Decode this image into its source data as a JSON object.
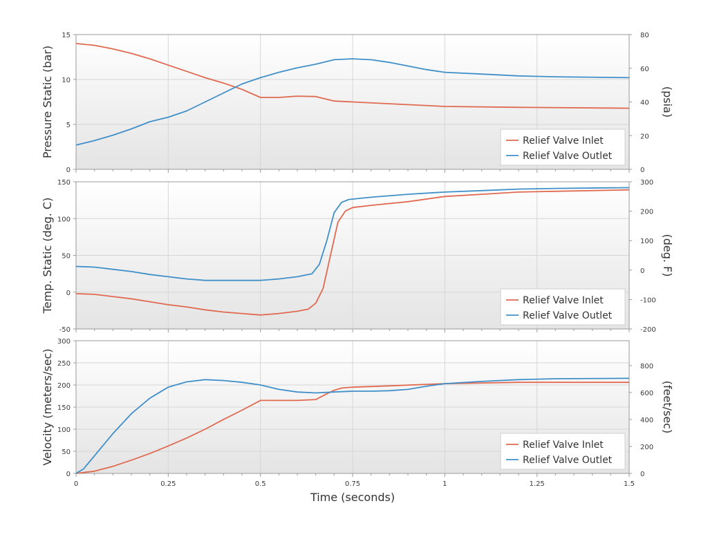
{
  "figure": {
    "xlabel": "Time (seconds)",
    "colors": {
      "inlet": "#e0694f",
      "outlet": "#3f8fc9",
      "plot_bg_top": "#ffffff",
      "plot_bg_bottom": "#e6e6e6",
      "grid": "#d6d6d6",
      "axis": "#9a9a9a"
    }
  },
  "chart_data": [
    {
      "type": "line",
      "ylabel": "Pressure Static (bar)",
      "y2label": "(psia)",
      "xlim": [
        0,
        1.5
      ],
      "ylim": [
        0,
        15
      ],
      "y2lim": [
        0,
        80
      ],
      "x_ticks": [
        0,
        0.25,
        0.5,
        0.75,
        1,
        1.25,
        1.5
      ],
      "x_tick_labels": [
        "0",
        "0.25",
        "0.5",
        "0.75",
        "1",
        "1.25",
        "1.5"
      ],
      "y_ticks": [
        0,
        5,
        10,
        15
      ],
      "y_tick_labels": [
        "0",
        "5",
        "10",
        "15"
      ],
      "y2_ticks": [
        0,
        20,
        40,
        60,
        80
      ],
      "y2_tick_labels": [
        "0",
        "20",
        "40",
        "60",
        "80"
      ],
      "grid": true,
      "legend": "bottom-right",
      "series": [
        {
          "name": "Relief Valve Inlet",
          "color": "#e0694f",
          "x": [
            0,
            0.05,
            0.1,
            0.15,
            0.2,
            0.25,
            0.3,
            0.35,
            0.4,
            0.45,
            0.5,
            0.55,
            0.6,
            0.65,
            0.7,
            0.75,
            0.85,
            1.0,
            1.2,
            1.5
          ],
          "y": [
            14.0,
            13.8,
            13.4,
            12.9,
            12.3,
            11.6,
            10.9,
            10.2,
            9.6,
            8.9,
            8.0,
            8.0,
            8.15,
            8.1,
            7.6,
            7.5,
            7.3,
            7.0,
            6.9,
            6.8
          ]
        },
        {
          "name": "Relief Valve Outlet",
          "color": "#3f8fc9",
          "x": [
            0,
            0.05,
            0.1,
            0.15,
            0.2,
            0.25,
            0.3,
            0.35,
            0.4,
            0.45,
            0.5,
            0.55,
            0.6,
            0.65,
            0.7,
            0.75,
            0.8,
            0.85,
            0.9,
            0.95,
            1.0,
            1.1,
            1.2,
            1.3,
            1.5
          ],
          "y": [
            2.7,
            3.2,
            3.8,
            4.5,
            5.3,
            5.8,
            6.5,
            7.5,
            8.5,
            9.5,
            10.2,
            10.8,
            11.3,
            11.7,
            12.2,
            12.3,
            12.2,
            11.9,
            11.5,
            11.1,
            10.8,
            10.6,
            10.4,
            10.3,
            10.2
          ]
        }
      ],
      "legend_entries": [
        "Relief Valve Inlet",
        "Relief Valve Outlet"
      ]
    },
    {
      "type": "line",
      "ylabel": "Temp. Static (deg. C)",
      "y2label": "(deg. F)",
      "xlim": [
        0,
        1.5
      ],
      "ylim": [
        -50,
        150
      ],
      "y2lim": [
        -200,
        300
      ],
      "y_ticks": [
        -50,
        0,
        50,
        100,
        150
      ],
      "y_tick_labels": [
        "-50",
        "0",
        "50",
        "100",
        "150"
      ],
      "y2_ticks": [
        -200,
        -100,
        0,
        100,
        200,
        300
      ],
      "y2_tick_labels": [
        "-200",
        "-100",
        "0",
        "100",
        "200",
        "300"
      ],
      "grid": true,
      "legend": "bottom-right",
      "series": [
        {
          "name": "Relief Valve Inlet",
          "color": "#e0694f",
          "x": [
            0,
            0.05,
            0.1,
            0.15,
            0.2,
            0.25,
            0.3,
            0.35,
            0.4,
            0.45,
            0.5,
            0.55,
            0.6,
            0.63,
            0.65,
            0.67,
            0.69,
            0.71,
            0.73,
            0.75,
            0.8,
            0.9,
            1.0,
            1.1,
            1.2,
            1.3,
            1.5
          ],
          "y": [
            -2,
            -3,
            -6,
            -9,
            -13,
            -17,
            -20,
            -24,
            -27,
            -29,
            -31,
            -29,
            -26,
            -23,
            -15,
            5,
            50,
            95,
            110,
            115,
            118,
            123,
            130,
            133,
            136,
            137,
            139
          ]
        },
        {
          "name": "Relief Valve Outlet",
          "color": "#3f8fc9",
          "x": [
            0,
            0.05,
            0.1,
            0.15,
            0.2,
            0.25,
            0.3,
            0.35,
            0.4,
            0.45,
            0.5,
            0.55,
            0.6,
            0.64,
            0.66,
            0.68,
            0.7,
            0.72,
            0.74,
            0.8,
            0.9,
            1.0,
            1.1,
            1.2,
            1.3,
            1.5
          ],
          "y": [
            35,
            34,
            31,
            28,
            24,
            21,
            18,
            16,
            16,
            16,
            16,
            18,
            21,
            25,
            38,
            70,
            108,
            122,
            126,
            129,
            133,
            136,
            138,
            140,
            141,
            142
          ]
        }
      ],
      "legend_entries": [
        "Relief Valve Inlet",
        "Relief Valve Outlet"
      ]
    },
    {
      "type": "line",
      "ylabel": "Velocity (meters/sec)",
      "y2label": "(feet/sec)",
      "xlim": [
        0,
        1.5
      ],
      "ylim": [
        0,
        300
      ],
      "y2lim": [
        0,
        984
      ],
      "y_ticks": [
        0,
        50,
        100,
        150,
        200,
        250,
        300
      ],
      "y_tick_labels": [
        "0",
        "50",
        "100",
        "150",
        "200",
        "250",
        "300"
      ],
      "y2_ticks": [
        0,
        200,
        400,
        600,
        800
      ],
      "y2_tick_labels": [
        "0",
        "200",
        "400",
        "600",
        "800"
      ],
      "grid": true,
      "legend": "bottom-right",
      "series": [
        {
          "name": "Relief Valve Inlet",
          "color": "#e0694f",
          "x": [
            0,
            0.05,
            0.1,
            0.15,
            0.2,
            0.25,
            0.3,
            0.35,
            0.4,
            0.45,
            0.5,
            0.55,
            0.6,
            0.65,
            0.68,
            0.7,
            0.72,
            0.75,
            0.85,
            1.0,
            1.2,
            1.5
          ],
          "y": [
            0,
            5,
            16,
            30,
            45,
            62,
            80,
            100,
            122,
            143,
            165,
            165,
            165,
            167,
            180,
            188,
            193,
            195,
            198,
            203,
            206,
            206
          ]
        },
        {
          "name": "Relief Valve Outlet",
          "color": "#3f8fc9",
          "x": [
            0,
            0.02,
            0.05,
            0.1,
            0.15,
            0.2,
            0.25,
            0.3,
            0.35,
            0.4,
            0.45,
            0.5,
            0.55,
            0.6,
            0.65,
            0.7,
            0.75,
            0.8,
            0.85,
            0.9,
            0.95,
            1.0,
            1.1,
            1.2,
            1.3,
            1.5
          ],
          "y": [
            0,
            10,
            40,
            90,
            135,
            170,
            195,
            207,
            212,
            210,
            206,
            200,
            190,
            184,
            182,
            184,
            186,
            186,
            187,
            190,
            197,
            203,
            208,
            212,
            214,
            215
          ]
        }
      ],
      "legend_entries": [
        "Relief Valve Inlet",
        "Relief Valve Outlet"
      ]
    }
  ]
}
